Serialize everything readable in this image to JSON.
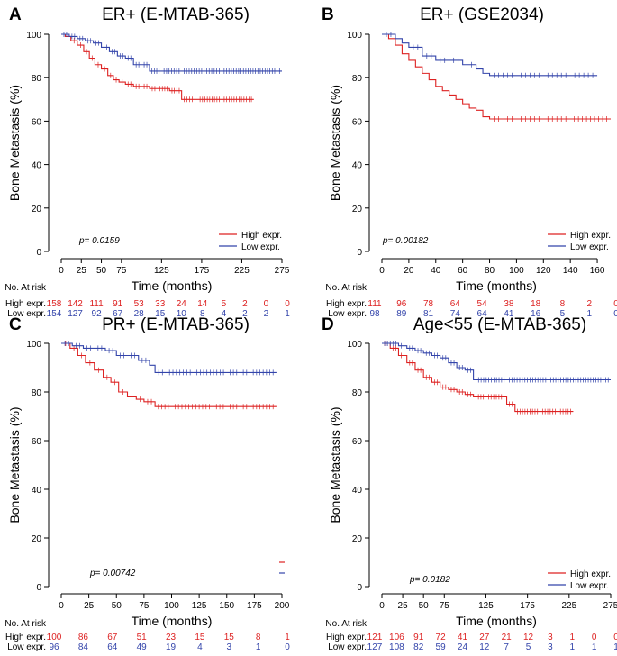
{
  "colors": {
    "high": "#dd2222",
    "low": "#3344aa",
    "axis": "#000000"
  },
  "chart_data": [
    {
      "type": "line",
      "panel": "A",
      "title": "ER+ (E-MTAB-365)",
      "xlabel": "Time (months)",
      "ylabel": "Bone Metastasis (%)",
      "xlim": [
        0,
        275
      ],
      "ylim": [
        0,
        100
      ],
      "xticks": [
        0,
        25,
        50,
        75,
        125,
        175,
        225,
        275
      ],
      "yticks": [
        0,
        20,
        40,
        60,
        80,
        100
      ],
      "pvalue": "p= 0.0159",
      "legend": [
        "High expr.",
        "Low expr."
      ],
      "series": [
        {
          "name": "High expr.",
          "key": "high",
          "x": [
            0,
            5,
            12,
            20,
            28,
            35,
            42,
            50,
            58,
            65,
            72,
            80,
            90,
            100,
            110,
            120,
            135,
            150,
            170,
            200,
            240
          ],
          "y": [
            100,
            99,
            97,
            95,
            92,
            89,
            86,
            84,
            81,
            79,
            78,
            77,
            76,
            76,
            75,
            75,
            74,
            70,
            70,
            70,
            70
          ]
        },
        {
          "name": "Low expr.",
          "key": "low",
          "x": [
            0,
            10,
            20,
            30,
            40,
            50,
            60,
            70,
            80,
            90,
            100,
            110,
            125,
            150,
            200,
            275
          ],
          "y": [
            100,
            99,
            98,
            97,
            96,
            94,
            92,
            90,
            89,
            86,
            86,
            83,
            83,
            83,
            83,
            83
          ]
        }
      ],
      "risk_table": {
        "header": "No. At risk",
        "high_label": "High expr.",
        "low_label": "Low expr.",
        "times": [
          0,
          25,
          50,
          75,
          100,
          125,
          150,
          175,
          200,
          225,
          250,
          275
        ],
        "high": [
          "158",
          "142",
          "111",
          "91",
          "53",
          "33",
          "24",
          "14",
          "5",
          "2",
          "0",
          "0"
        ],
        "low": [
          "154",
          "127",
          "92",
          "67",
          "28",
          "15",
          "10",
          "8",
          "4",
          "2",
          "2",
          "1"
        ]
      }
    },
    {
      "type": "line",
      "panel": "B",
      "title": "ER+ (GSE2034)",
      "xlabel": "Time (months)",
      "ylabel": "Bone Metastasis (%)",
      "xlim": [
        0,
        170
      ],
      "ylim": [
        0,
        100
      ],
      "xticks": [
        0,
        20,
        40,
        60,
        80,
        100,
        120,
        140,
        160
      ],
      "yticks": [
        0,
        20,
        40,
        60,
        80,
        100
      ],
      "pvalue": "p= 0.00182",
      "legend": [
        "High expr.",
        "Low expr."
      ],
      "series": [
        {
          "name": "High expr.",
          "key": "high",
          "x": [
            0,
            5,
            10,
            15,
            20,
            25,
            30,
            35,
            40,
            45,
            50,
            55,
            60,
            65,
            70,
            75,
            80,
            90,
            100,
            120,
            140,
            170
          ],
          "y": [
            100,
            98,
            95,
            91,
            88,
            85,
            82,
            79,
            76,
            74,
            72,
            70,
            68,
            66,
            65,
            62,
            61,
            61,
            61,
            61,
            61,
            61
          ]
        },
        {
          "name": "Low expr.",
          "key": "low",
          "x": [
            0,
            10,
            15,
            20,
            30,
            40,
            50,
            60,
            70,
            75,
            80,
            100,
            120,
            140,
            160
          ],
          "y": [
            100,
            98,
            96,
            94,
            90,
            88,
            88,
            86,
            84,
            82,
            81,
            81,
            81,
            81,
            81
          ]
        }
      ],
      "risk_table": {
        "header": "No. At risk",
        "high_label": "High expr.",
        "low_label": "Low expr.",
        "times": [
          0,
          20,
          40,
          60,
          80,
          100,
          120,
          140,
          160,
          180
        ],
        "high": [
          "111",
          "96",
          "78",
          "64",
          "54",
          "38",
          "18",
          "8",
          "2",
          "0"
        ],
        "low": [
          "98",
          "89",
          "81",
          "74",
          "64",
          "41",
          "16",
          "5",
          "1",
          "0"
        ]
      }
    },
    {
      "type": "line",
      "panel": "C",
      "title": "PR+ (E-MTAB-365)",
      "xlabel": "Time (months)",
      "ylabel": "Bone Metastasis (%)",
      "xlim": [
        0,
        200
      ],
      "ylim": [
        0,
        100
      ],
      "xticks": [
        0,
        25,
        50,
        75,
        100,
        125,
        150,
        175,
        200
      ],
      "yticks": [
        0,
        20,
        40,
        60,
        80,
        100
      ],
      "pvalue": "p= 0.00742",
      "legend": [],
      "series": [
        {
          "name": "High expr.",
          "key": "high",
          "x": [
            0,
            8,
            15,
            22,
            30,
            38,
            45,
            52,
            60,
            68,
            75,
            85,
            100,
            150,
            195
          ],
          "y": [
            100,
            98,
            95,
            92,
            89,
            86,
            84,
            80,
            78,
            77,
            76,
            74,
            74,
            74,
            74
          ]
        },
        {
          "name": "Low expr.",
          "key": "low",
          "x": [
            0,
            10,
            20,
            30,
            40,
            50,
            60,
            70,
            80,
            85,
            95,
            120,
            150,
            195
          ],
          "y": [
            100,
            99,
            98,
            98,
            97,
            95,
            95,
            93,
            91,
            88,
            88,
            88,
            88,
            88
          ]
        }
      ],
      "risk_table": {
        "header": "No. At risk",
        "high_label": "High expr.",
        "low_label": "Low expr.",
        "times": [
          0,
          25,
          50,
          75,
          100,
          125,
          150,
          175,
          200
        ],
        "high": [
          "100",
          "86",
          "67",
          "51",
          "23",
          "15",
          "15",
          "8",
          "1"
        ],
        "low": [
          "96",
          "84",
          "64",
          "49",
          "19",
          "4",
          "3",
          "1",
          "0"
        ]
      }
    },
    {
      "type": "line",
      "panel": "D",
      "title": "Age<55 (E-MTAB-365)",
      "xlabel": "Time (months)",
      "ylabel": "Bone Metastasis (%)",
      "xlim": [
        0,
        275
      ],
      "ylim": [
        0,
        100
      ],
      "xticks": [
        0,
        25,
        50,
        75,
        125,
        175,
        225,
        275
      ],
      "yticks": [
        0,
        20,
        40,
        60,
        80,
        100
      ],
      "pvalue": "p= 0.0182",
      "legend": [
        "High expr.",
        "Low expr."
      ],
      "series": [
        {
          "name": "High expr.",
          "key": "high",
          "x": [
            0,
            10,
            20,
            30,
            40,
            50,
            60,
            70,
            80,
            90,
            100,
            110,
            125,
            150,
            160,
            190,
            230
          ],
          "y": [
            100,
            98,
            95,
            92,
            89,
            86,
            84,
            82,
            81,
            80,
            79,
            78,
            78,
            75,
            72,
            72,
            72
          ]
        },
        {
          "name": "Low expr.",
          "key": "low",
          "x": [
            0,
            20,
            30,
            40,
            50,
            60,
            70,
            80,
            90,
            100,
            110,
            150,
            200,
            275
          ],
          "y": [
            100,
            99,
            98,
            97,
            96,
            95,
            94,
            92,
            90,
            89,
            85,
            85,
            85,
            85
          ]
        }
      ],
      "risk_table": {
        "header": "No. At risk",
        "high_label": "High expr.",
        "low_label": "Low expr.",
        "times": [
          0,
          25,
          50,
          75,
          100,
          125,
          150,
          175,
          200,
          225,
          250,
          275
        ],
        "high": [
          "121",
          "106",
          "91",
          "72",
          "41",
          "27",
          "21",
          "12",
          "3",
          "1",
          "0",
          "0"
        ],
        "low": [
          "127",
          "108",
          "82",
          "59",
          "24",
          "12",
          "7",
          "5",
          "3",
          "1",
          "1",
          "1"
        ]
      }
    }
  ]
}
